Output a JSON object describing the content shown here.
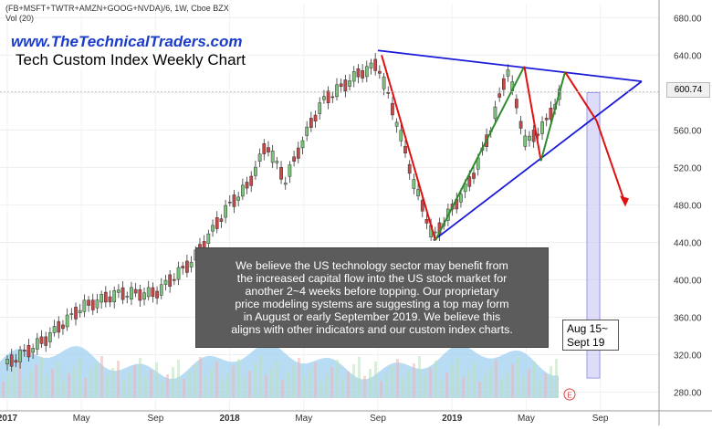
{
  "header": {
    "symbol": "(FB+MSFT+TWTR+AMZN+GOOG+NVDA)/6, 1W, Cboe BZX",
    "volume_label": "Vol (20)"
  },
  "brand": "www.TheTechnicalTraders.com",
  "annotation": {
    "lines": [
      "We believe the US technology sector may benefit from",
      "the increased capital flow into the US stock market for",
      "another 2~4 weeks before topping.  Our proprietary",
      "price modeling systems are suggesting a top may form",
      "in August or early September 2019.  We believe this",
      "aligns with other indicators and our custom index charts."
    ]
  },
  "date_box": {
    "line1": "Aug 15~",
    "line2": "Sept 19"
  },
  "last_price": "600.74",
  "event_marker": "E",
  "colors": {
    "up_candle": "#7cc47c",
    "down_candle": "#c84848",
    "trendline_blue": "#1a1ad8",
    "trend_red": "#e01010",
    "trend_green": "#2e8b2e",
    "volume": "#9fd0f0",
    "projection_box": "#c8c8f8"
  },
  "chart_data": {
    "type": "line",
    "title": "Tech Custom Index Weekly Chart",
    "xlabel": "",
    "ylabel": "",
    "x_ticks": [
      "2017",
      "May",
      "Sep",
      "2018",
      "May",
      "Sep",
      "2019",
      "May",
      "Sep"
    ],
    "y_ticks": [
      280,
      320,
      360,
      400,
      440,
      480,
      520,
      560,
      600,
      640,
      680
    ],
    "ylim": [
      260,
      695
    ],
    "y_axis_position": "right",
    "grid": true,
    "series": [
      {
        "x": [
          "2017-01",
          "2017-03",
          "2017-05",
          "2017-07",
          "2017-09",
          "2017-11",
          "2018-01",
          "2018-02",
          "2018-03",
          "2018-04",
          "2018-05",
          "2018-06",
          "2018-07",
          "2018-08",
          "2018-09",
          "2018-10",
          "2018-11",
          "2018-12",
          "2019-01",
          "2019-02",
          "2019-03",
          "2019-04",
          "2019-05",
          "2019-06",
          "2019-07"
        ],
        "values": [
          310,
          335,
          370,
          385,
          385,
          420,
          480,
          500,
          545,
          505,
          550,
          590,
          605,
          620,
          630,
          570,
          500,
          445,
          475,
          505,
          555,
          625,
          545,
          565,
          605
        ]
      }
    ],
    "trendlines": [
      {
        "kind": "upper-resistance",
        "from": [
          "2018-09",
          645
        ],
        "to": [
          "2019-10",
          612
        ]
      },
      {
        "kind": "lower-support",
        "from": [
          "2018-12",
          442
        ],
        "to": [
          "2019-10",
          612
        ]
      }
    ],
    "projection": {
      "label": "Aug 15~ Sept 19",
      "price_range": [
        295,
        600
      ]
    }
  }
}
